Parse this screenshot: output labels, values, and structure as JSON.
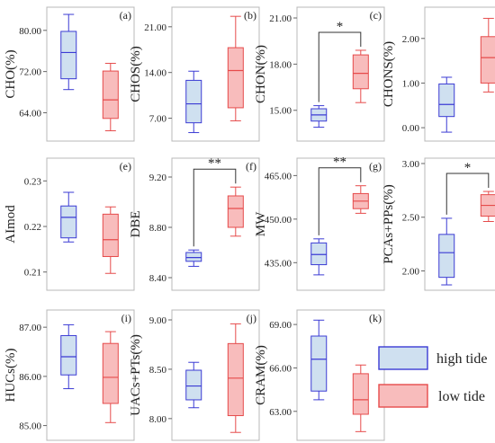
{
  "colors": {
    "high_tide": {
      "fill": "#cfe0f0",
      "stroke": "#3b3bd4"
    },
    "low_tide": {
      "fill": "#f8bcbc",
      "stroke": "#e64b4b"
    }
  },
  "legend": {
    "high": "high tide",
    "low": "low tide"
  },
  "chart_data": [
    {
      "type": "box",
      "letter": "(a)",
      "ylabel": "CHO(%)",
      "ylim": [
        58.5,
        84.5
      ],
      "yticks": [
        64.0,
        72.0,
        80.0
      ],
      "tick_labels": [
        "64.00",
        "72.00",
        "80.00"
      ],
      "categories": [
        "high tide",
        "low tide"
      ],
      "series": [
        {
          "name": "high tide",
          "min": 68.5,
          "q1": 70.6,
          "median": 75.7,
          "q3": 79.8,
          "max": 83.1
        },
        {
          "name": "low tide",
          "min": 60.5,
          "q1": 62.9,
          "median": 66.5,
          "q3": 72.1,
          "max": 73.6
        }
      ]
    },
    {
      "type": "box",
      "letter": "(b)",
      "ylabel": "CHOS(%)",
      "ylim": [
        3.5,
        24.0
      ],
      "yticks": [
        7.0,
        14.0,
        21.0
      ],
      "tick_labels": [
        "7.00",
        "14.00",
        "21.00"
      ],
      "categories": [
        "high tide",
        "low tide"
      ],
      "series": [
        {
          "name": "high tide",
          "min": 4.8,
          "q1": 6.3,
          "median": 9.2,
          "q3": 12.8,
          "max": 14.2
        },
        {
          "name": "low tide",
          "min": 6.6,
          "q1": 8.6,
          "median": 14.3,
          "q3": 17.8,
          "max": 22.6
        }
      ]
    },
    {
      "type": "box",
      "letter": "(c)",
      "ylabel": "CHON(%)",
      "ylim": [
        13.0,
        21.7
      ],
      "yticks": [
        15.0,
        18.0,
        21.0
      ],
      "tick_labels": [
        "15.00",
        "18.00",
        "21.00"
      ],
      "categories": [
        "high tide",
        "low tide"
      ],
      "series": [
        {
          "name": "high tide",
          "min": 13.9,
          "q1": 14.3,
          "median": 14.7,
          "q3": 15.1,
          "max": 15.3
        },
        {
          "name": "low tide",
          "min": 15.5,
          "q1": 16.4,
          "median": 17.4,
          "q3": 18.6,
          "max": 18.9
        }
      ],
      "significance": "*"
    },
    {
      "type": "box",
      "letter": "(d)",
      "ylabel": "CHONS(%)",
      "ylim": [
        -0.3,
        2.7
      ],
      "yticks": [
        0.0,
        1.0,
        2.0
      ],
      "tick_labels": [
        "0.00",
        "1.00",
        "2.00"
      ],
      "categories": [
        "high tide",
        "low tide"
      ],
      "series": [
        {
          "name": "high tide",
          "min": -0.1,
          "q1": 0.25,
          "median": 0.52,
          "q3": 0.98,
          "max": 1.13
        },
        {
          "name": "low tide",
          "min": 0.8,
          "q1": 1.0,
          "median": 1.57,
          "q3": 2.04,
          "max": 2.45
        }
      ]
    },
    {
      "type": "box",
      "letter": "(e)",
      "ylabel": "AImod",
      "ylim": [
        0.206,
        0.235
      ],
      "yticks": [
        0.21,
        0.22,
        0.23
      ],
      "tick_labels": [
        "0.21",
        "0.22",
        "0.23"
      ],
      "categories": [
        "high tide",
        "low tide"
      ],
      "series": [
        {
          "name": "high tide",
          "min": 0.2166,
          "q1": 0.2175,
          "median": 0.222,
          "q3": 0.2245,
          "max": 0.2275
        },
        {
          "name": "low tide",
          "min": 0.2097,
          "q1": 0.2134,
          "median": 0.2171,
          "q3": 0.2227,
          "max": 0.2243
        }
      ]
    },
    {
      "type": "box",
      "letter": "(f)",
      "ylabel": "DBE",
      "ylim": [
        8.3,
        9.35
      ],
      "yticks": [
        8.4,
        8.8,
        9.2
      ],
      "tick_labels": [
        "8.40",
        "8.80",
        "9.20"
      ],
      "categories": [
        "high tide",
        "low tide"
      ],
      "series": [
        {
          "name": "high tide",
          "min": 8.49,
          "q1": 8.53,
          "median": 8.56,
          "q3": 8.6,
          "max": 8.62
        },
        {
          "name": "low tide",
          "min": 8.73,
          "q1": 8.8,
          "median": 8.95,
          "q3": 9.05,
          "max": 9.12
        }
      ],
      "significance": "**"
    },
    {
      "type": "box",
      "letter": "(g)",
      "ylabel": "MW",
      "ylim": [
        425.5,
        471.0
      ],
      "yticks": [
        435.0,
        450.0,
        465.0
      ],
      "tick_labels": [
        "435.00",
        "450.00",
        "465.00"
      ],
      "categories": [
        "high tide",
        "low tide"
      ],
      "series": [
        {
          "name": "high tide",
          "min": 430.8,
          "q1": 434.3,
          "median": 437.8,
          "q3": 441.8,
          "max": 443.2
        },
        {
          "name": "low tide",
          "min": 452.0,
          "q1": 453.6,
          "median": 456.2,
          "q3": 458.8,
          "max": 461.5
        }
      ],
      "significance": "**"
    },
    {
      "type": "box",
      "letter": "(h)",
      "ylabel": "PCAs+PPs(%)",
      "ylim": [
        1.82,
        3.05
      ],
      "yticks": [
        2.0,
        2.5,
        3.0
      ],
      "tick_labels": [
        "2.00",
        "2.50",
        "3.00"
      ],
      "categories": [
        "high tide",
        "low tide"
      ],
      "series": [
        {
          "name": "high tide",
          "min": 1.87,
          "q1": 1.94,
          "median": 2.17,
          "q3": 2.34,
          "max": 2.49
        },
        {
          "name": "low tide",
          "min": 2.46,
          "q1": 2.51,
          "median": 2.61,
          "q3": 2.71,
          "max": 2.74
        }
      ],
      "significance": "*"
    },
    {
      "type": "box",
      "letter": "(i)",
      "ylabel": "HUCs(%)",
      "ylim": [
        84.7,
        87.35
      ],
      "yticks": [
        85.0,
        86.0,
        87.0
      ],
      "tick_labels": [
        "85.00",
        "86.00",
        "87.00"
      ],
      "categories": [
        "high tide",
        "low tide"
      ],
      "series": [
        {
          "name": "high tide",
          "min": 85.75,
          "q1": 86.03,
          "median": 86.4,
          "q3": 86.83,
          "max": 87.05
        },
        {
          "name": "low tide",
          "min": 85.06,
          "q1": 85.45,
          "median": 85.98,
          "q3": 86.67,
          "max": 86.91
        }
      ]
    },
    {
      "type": "box",
      "letter": "(j)",
      "ylabel": "UACs+PTs(%)",
      "ylim": [
        7.78,
        9.1
      ],
      "yticks": [
        8.0,
        8.5,
        9.0
      ],
      "tick_labels": [
        "8.00",
        "8.50",
        "9.00"
      ],
      "categories": [
        "high tide",
        "low tide"
      ],
      "series": [
        {
          "name": "high tide",
          "min": 8.11,
          "q1": 8.19,
          "median": 8.33,
          "q3": 8.49,
          "max": 8.57
        },
        {
          "name": "low tide",
          "min": 7.86,
          "q1": 8.03,
          "median": 8.41,
          "q3": 8.76,
          "max": 8.96
        }
      ]
    },
    {
      "type": "box",
      "letter": "(k)",
      "ylabel": "CRAM(%)",
      "ylim": [
        61.0,
        70.0
      ],
      "yticks": [
        63.0,
        66.0,
        69.0
      ],
      "tick_labels": [
        "63.00",
        "66.00",
        "69.00"
      ],
      "categories": [
        "high tide",
        "low tide"
      ],
      "series": [
        {
          "name": "high tide",
          "min": 63.8,
          "q1": 64.4,
          "median": 66.6,
          "q3": 68.2,
          "max": 69.3
        },
        {
          "name": "low tide",
          "min": 61.6,
          "q1": 62.8,
          "median": 63.8,
          "q3": 65.6,
          "max": 66.2
        }
      ]
    }
  ]
}
